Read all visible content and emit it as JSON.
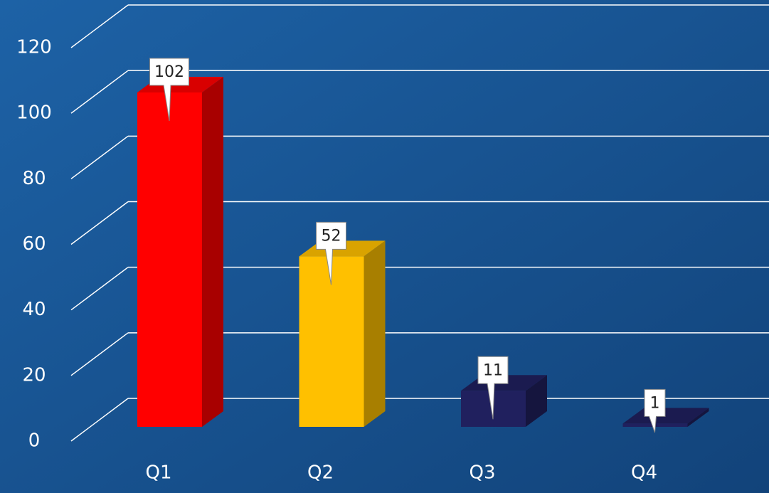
{
  "chart_data": {
    "type": "bar3d",
    "categories": [
      "Q1",
      "Q2",
      "Q3",
      "Q4"
    ],
    "values": [
      102,
      52,
      11,
      1
    ],
    "colors": [
      "#ff0000",
      "#ffc000",
      "#20205e",
      "#20205e"
    ],
    "ylim": [
      0,
      120
    ],
    "yticks": [
      0,
      20,
      40,
      60,
      80,
      100,
      120
    ],
    "grid": true
  }
}
